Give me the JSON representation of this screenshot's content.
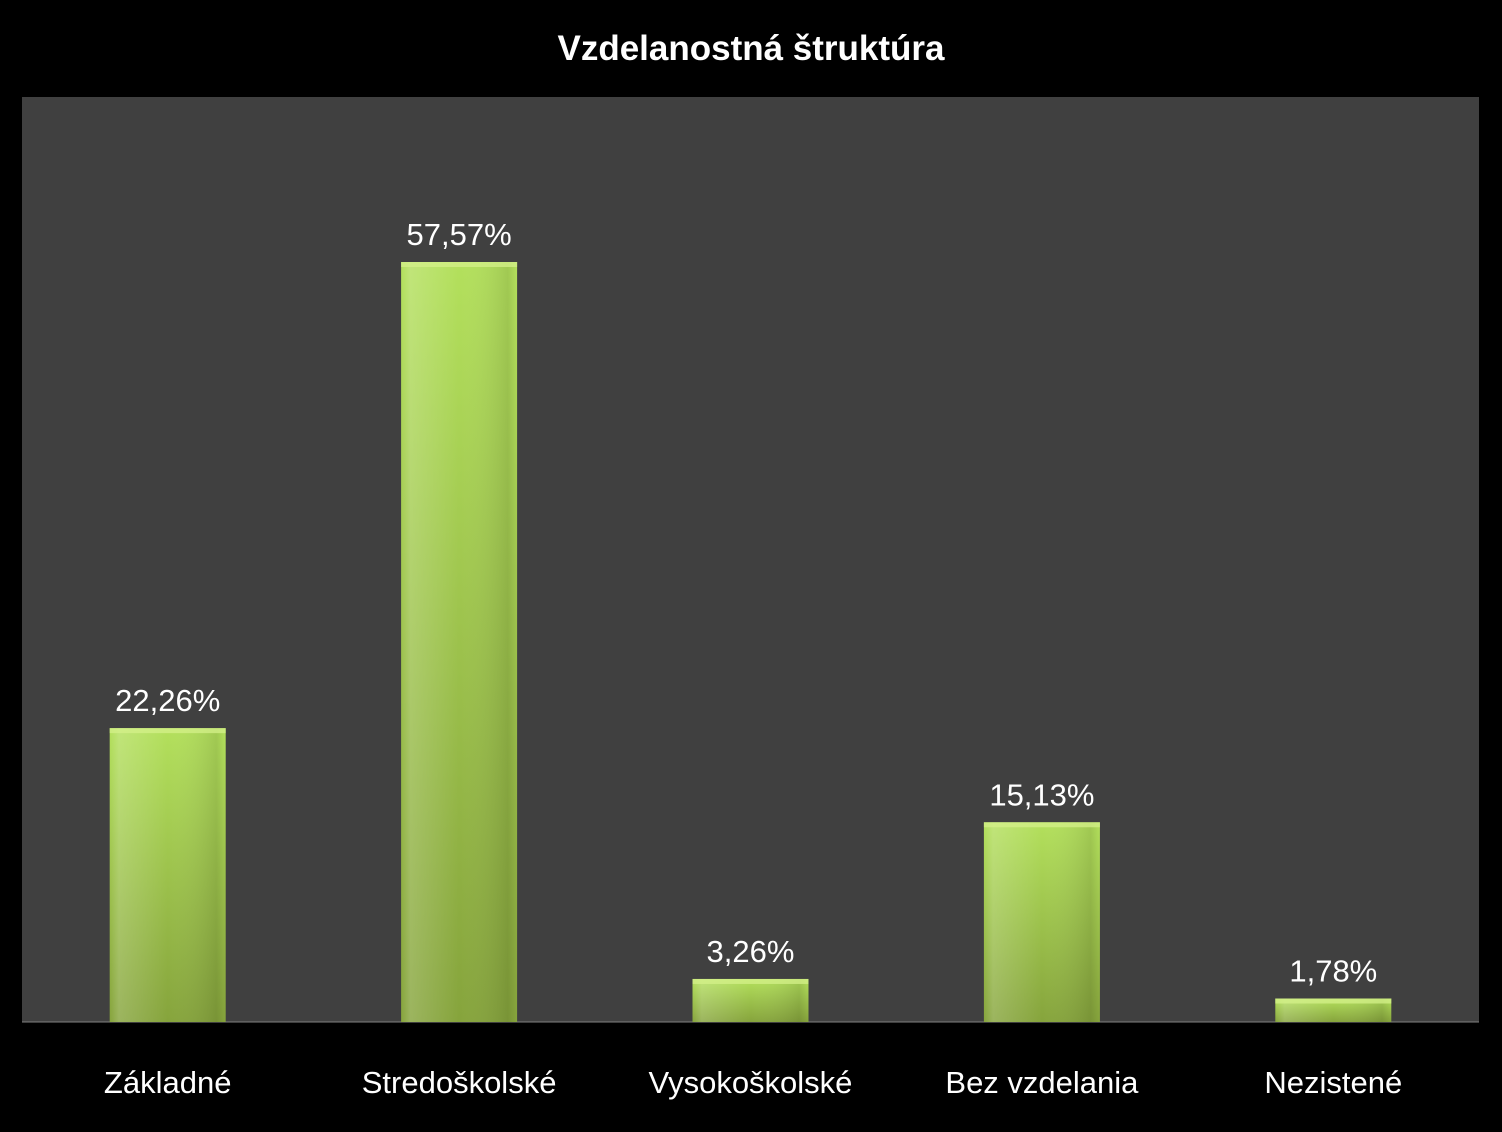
{
  "colors": {
    "background": "#000000",
    "plot_area": "#404040",
    "bar_light": "#b3e05c",
    "bar_dark": "#86a43c",
    "text": "#ffffff"
  },
  "chart_data": {
    "type": "bar",
    "title": "Vzdelanostná štruktúra",
    "categories": [
      "Základné",
      "Stredoškolské",
      "Vysokoškolské",
      "Bez vzdelania",
      "Nezistené"
    ],
    "values": [
      22.26,
      57.57,
      3.26,
      15.13,
      1.78
    ],
    "data_labels": [
      "22,26%",
      "57,57%",
      "3,26%",
      "15,13%",
      "1,78%"
    ],
    "xlabel": "",
    "ylabel": "",
    "ylim": [
      0,
      70
    ],
    "grid": false,
    "legend": "none"
  }
}
